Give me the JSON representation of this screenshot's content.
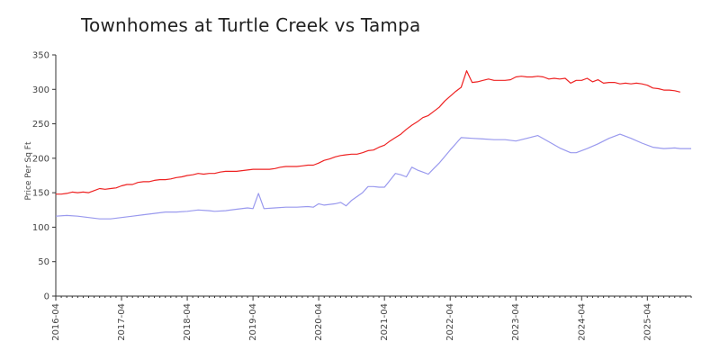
{
  "chart_data": {
    "type": "line",
    "title": "Townhomes at Turtle Creek vs Tampa",
    "xlabel": "",
    "ylabel": "Price Per Sq Ft",
    "ylim": [
      0,
      350
    ],
    "yticks": [
      0,
      50,
      100,
      150,
      200,
      250,
      300,
      350
    ],
    "xlim": [
      "2016-04",
      "2025-12"
    ],
    "xticks": [
      "2016-04",
      "2017-04",
      "2018-04",
      "2019-04",
      "2020-04",
      "2021-04",
      "2022-04",
      "2023-04",
      "2024-04",
      "2025-04"
    ],
    "grid": false,
    "legend": "none",
    "series": [
      {
        "color": "#ee2222",
        "points": [
          [
            "2016-04",
            148
          ],
          [
            "2016-05",
            148
          ],
          [
            "2016-06",
            149
          ],
          [
            "2016-07",
            151
          ],
          [
            "2016-08",
            150
          ],
          [
            "2016-09",
            151
          ],
          [
            "2016-10",
            150
          ],
          [
            "2016-11",
            153
          ],
          [
            "2016-12",
            156
          ],
          [
            "2017-01",
            155
          ],
          [
            "2017-02",
            156
          ],
          [
            "2017-03",
            157
          ],
          [
            "2017-04",
            160
          ],
          [
            "2017-05",
            162
          ],
          [
            "2017-06",
            162
          ],
          [
            "2017-07",
            165
          ],
          [
            "2017-08",
            166
          ],
          [
            "2017-09",
            166
          ],
          [
            "2017-10",
            168
          ],
          [
            "2017-11",
            169
          ],
          [
            "2017-12",
            169
          ],
          [
            "2018-01",
            170
          ],
          [
            "2018-02",
            172
          ],
          [
            "2018-03",
            173
          ],
          [
            "2018-04",
            175
          ],
          [
            "2018-05",
            176
          ],
          [
            "2018-06",
            178
          ],
          [
            "2018-07",
            177
          ],
          [
            "2018-08",
            178
          ],
          [
            "2018-09",
            178
          ],
          [
            "2018-10",
            180
          ],
          [
            "2018-11",
            181
          ],
          [
            "2018-12",
            181
          ],
          [
            "2019-01",
            181
          ],
          [
            "2019-02",
            182
          ],
          [
            "2019-03",
            183
          ],
          [
            "2019-04",
            184
          ],
          [
            "2019-05",
            184
          ],
          [
            "2019-06",
            184
          ],
          [
            "2019-07",
            184
          ],
          [
            "2019-08",
            185
          ],
          [
            "2019-09",
            187
          ],
          [
            "2019-10",
            188
          ],
          [
            "2019-11",
            188
          ],
          [
            "2019-12",
            188
          ],
          [
            "2020-01",
            189
          ],
          [
            "2020-02",
            190
          ],
          [
            "2020-03",
            190
          ],
          [
            "2020-04",
            193
          ],
          [
            "2020-05",
            197
          ],
          [
            "2020-06",
            199
          ],
          [
            "2020-07",
            202
          ],
          [
            "2020-08",
            204
          ],
          [
            "2020-09",
            205
          ],
          [
            "2020-10",
            206
          ],
          [
            "2020-11",
            206
          ],
          [
            "2020-12",
            208
          ],
          [
            "2021-01",
            211
          ],
          [
            "2021-02",
            212
          ],
          [
            "2021-03",
            216
          ],
          [
            "2021-04",
            219
          ],
          [
            "2021-05",
            225
          ],
          [
            "2021-06",
            230
          ],
          [
            "2021-07",
            235
          ],
          [
            "2021-08",
            242
          ],
          [
            "2021-09",
            248
          ],
          [
            "2021-10",
            253
          ],
          [
            "2021-11",
            259
          ],
          [
            "2021-12",
            262
          ],
          [
            "2022-01",
            268
          ],
          [
            "2022-02",
            274
          ],
          [
            "2022-03",
            283
          ],
          [
            "2022-04",
            290
          ],
          [
            "2022-05",
            297
          ],
          [
            "2022-06",
            303
          ],
          [
            "2022-07",
            327
          ],
          [
            "2022-08",
            310
          ],
          [
            "2022-09",
            311
          ],
          [
            "2022-10",
            313
          ],
          [
            "2022-11",
            315
          ],
          [
            "2022-12",
            313
          ],
          [
            "2023-01",
            313
          ],
          [
            "2023-02",
            313
          ],
          [
            "2023-03",
            314
          ],
          [
            "2023-04",
            318
          ],
          [
            "2023-05",
            319
          ],
          [
            "2023-06",
            318
          ],
          [
            "2023-07",
            318
          ],
          [
            "2023-08",
            319
          ],
          [
            "2023-09",
            318
          ],
          [
            "2023-10",
            315
          ],
          [
            "2023-11",
            316
          ],
          [
            "2023-12",
            315
          ],
          [
            "2024-01",
            316
          ],
          [
            "2024-02",
            309
          ],
          [
            "2024-03",
            313
          ],
          [
            "2024-04",
            313
          ],
          [
            "2024-05",
            316
          ],
          [
            "2024-06",
            311
          ],
          [
            "2024-07",
            314
          ],
          [
            "2024-08",
            309
          ],
          [
            "2024-09",
            310
          ],
          [
            "2024-10",
            310
          ],
          [
            "2024-11",
            308
          ],
          [
            "2024-12",
            309
          ],
          [
            "2025-01",
            308
          ],
          [
            "2025-02",
            309
          ],
          [
            "2025-03",
            308
          ],
          [
            "2025-04",
            306
          ],
          [
            "2025-05",
            302
          ],
          [
            "2025-06",
            301
          ],
          [
            "2025-07",
            299
          ],
          [
            "2025-08",
            299
          ],
          [
            "2025-09",
            298
          ],
          [
            "2025-10",
            296
          ]
        ]
      },
      {
        "color": "#9999ee",
        "points": [
          [
            "2016-04",
            116
          ],
          [
            "2016-06",
            117
          ],
          [
            "2016-08",
            116
          ],
          [
            "2016-10",
            114
          ],
          [
            "2016-12",
            112
          ],
          [
            "2017-02",
            112
          ],
          [
            "2017-04",
            114
          ],
          [
            "2017-06",
            116
          ],
          [
            "2017-08",
            118
          ],
          [
            "2017-10",
            120
          ],
          [
            "2017-12",
            122
          ],
          [
            "2018-02",
            122
          ],
          [
            "2018-04",
            123
          ],
          [
            "2018-06",
            125
          ],
          [
            "2018-08",
            124
          ],
          [
            "2018-09",
            123
          ],
          [
            "2018-11",
            124
          ],
          [
            "2019-01",
            126
          ],
          [
            "2019-03",
            128
          ],
          [
            "2019-04",
            127
          ],
          [
            "2019-05",
            149
          ],
          [
            "2019-06",
            127
          ],
          [
            "2019-08",
            128
          ],
          [
            "2019-10",
            129
          ],
          [
            "2019-12",
            129
          ],
          [
            "2020-02",
            130
          ],
          [
            "2020-03",
            129
          ],
          [
            "2020-04",
            134
          ],
          [
            "2020-05",
            132
          ],
          [
            "2020-07",
            134
          ],
          [
            "2020-08",
            136
          ],
          [
            "2020-09",
            131
          ],
          [
            "2020-10",
            139
          ],
          [
            "2020-12",
            150
          ],
          [
            "2021-01",
            159
          ],
          [
            "2021-02",
            159
          ],
          [
            "2021-03",
            158
          ],
          [
            "2021-04",
            158
          ],
          [
            "2021-05",
            168
          ],
          [
            "2021-06",
            178
          ],
          [
            "2021-07",
            176
          ],
          [
            "2021-08",
            173
          ],
          [
            "2021-09",
            187
          ],
          [
            "2021-10",
            183
          ],
          [
            "2021-11",
            180
          ],
          [
            "2021-12",
            177
          ],
          [
            "2022-01",
            185
          ],
          [
            "2022-02",
            193
          ],
          [
            "2022-04",
            212
          ],
          [
            "2022-06",
            230
          ],
          [
            "2022-08",
            229
          ],
          [
            "2022-10",
            228
          ],
          [
            "2022-12",
            227
          ],
          [
            "2023-02",
            227
          ],
          [
            "2023-04",
            225
          ],
          [
            "2023-06",
            229
          ],
          [
            "2023-08",
            233
          ],
          [
            "2023-10",
            224
          ],
          [
            "2023-12",
            215
          ],
          [
            "2024-02",
            208
          ],
          [
            "2024-03",
            208
          ],
          [
            "2024-05",
            214
          ],
          [
            "2024-07",
            221
          ],
          [
            "2024-09",
            229
          ],
          [
            "2024-11",
            235
          ],
          [
            "2025-01",
            229
          ],
          [
            "2025-03",
            222
          ],
          [
            "2025-05",
            216
          ],
          [
            "2025-07",
            214
          ],
          [
            "2025-09",
            215
          ],
          [
            "2025-10",
            214
          ],
          [
            "2025-12",
            214
          ]
        ]
      }
    ]
  }
}
